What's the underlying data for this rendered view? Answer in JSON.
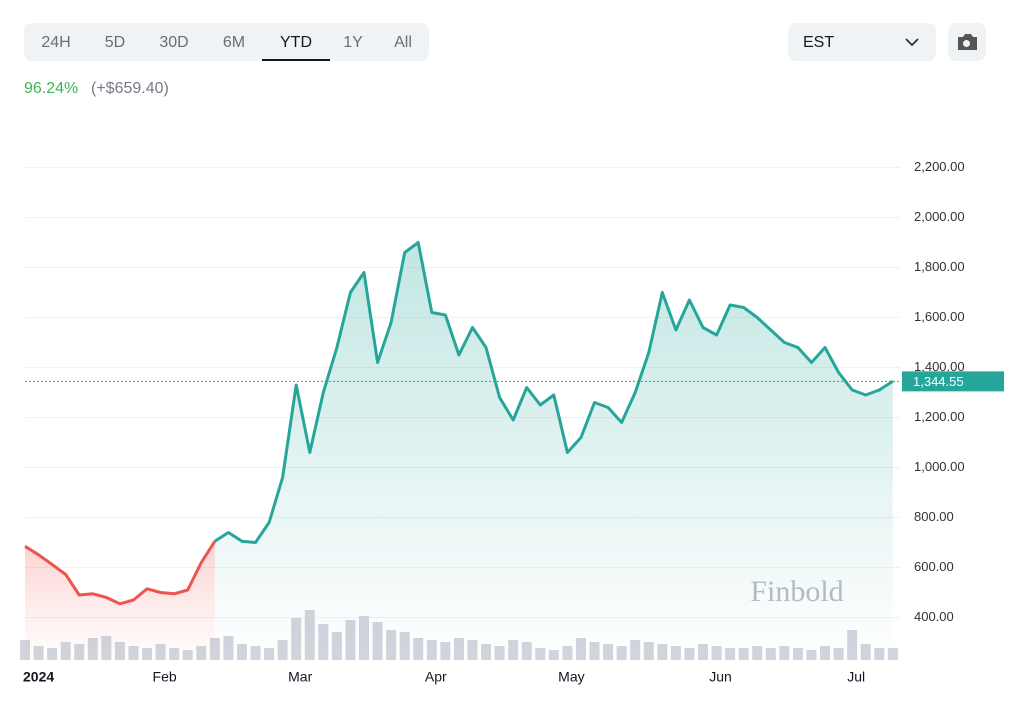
{
  "toolbar": {
    "ranges": [
      "24H",
      "5D",
      "30D",
      "6M",
      "YTD",
      "1Y",
      "All"
    ],
    "selected": "YTD",
    "timezone": "EST"
  },
  "summary": {
    "change_percent": "96.24%",
    "change_amount": "(+$659.40)"
  },
  "chart_data": {
    "type": "line",
    "categories": [
      "2024",
      null,
      null,
      null,
      null,
      null,
      null,
      null,
      null,
      null,
      "Feb",
      null,
      null,
      null,
      null,
      null,
      null,
      null,
      null,
      null,
      "Mar",
      null,
      null,
      null,
      null,
      null,
      null,
      null,
      null,
      null,
      "Apr",
      null,
      null,
      null,
      null,
      null,
      null,
      null,
      null,
      null,
      "May",
      null,
      null,
      null,
      null,
      null,
      null,
      null,
      null,
      null,
      null,
      "Jun",
      null,
      null,
      null,
      null,
      null,
      null,
      null,
      null,
      null,
      "Jul",
      null,
      null,
      null
    ],
    "values": [
      685,
      651,
      612,
      572,
      490,
      495,
      480,
      455,
      470,
      515,
      500,
      495,
      510,
      620,
      705,
      740,
      705,
      700,
      780,
      960,
      1330,
      1060,
      1300,
      1480,
      1700,
      1780,
      1420,
      1580,
      1860,
      1900,
      1620,
      1610,
      1450,
      1560,
      1480,
      1280,
      1190,
      1320,
      1250,
      1290,
      1060,
      1120,
      1260,
      1240,
      1180,
      1300,
      1460,
      1700,
      1550,
      1670,
      1560,
      1530,
      1650,
      1640,
      1600,
      1550,
      1500,
      1480,
      1420,
      1480,
      1380,
      1310,
      1290,
      1310,
      1345
    ],
    "volume": [
      20,
      14,
      12,
      18,
      16,
      22,
      24,
      18,
      14,
      12,
      16,
      12,
      10,
      14,
      22,
      24,
      16,
      14,
      12,
      20,
      42,
      50,
      36,
      28,
      40,
      44,
      38,
      30,
      28,
      22,
      20,
      18,
      22,
      20,
      16,
      14,
      20,
      18,
      12,
      10,
      14,
      22,
      18,
      16,
      14,
      20,
      18,
      16,
      14,
      12,
      16,
      14,
      12,
      12,
      14,
      12,
      14,
      12,
      10,
      14,
      12,
      30,
      16,
      12,
      12
    ],
    "colors": {
      "down": "#ef5350",
      "up": "#26a69a"
    },
    "last_price": {
      "value": 1344.55,
      "label": "1,344.55"
    },
    "watermark": "Finbold",
    "ylim": [
      230,
      2350
    ],
    "yticks": [
      {
        "value": 400,
        "label": "400.00"
      },
      {
        "value": 600,
        "label": "600.00"
      },
      {
        "value": 800,
        "label": "800.00"
      },
      {
        "value": 1000,
        "label": "1,000.00"
      },
      {
        "value": 1200,
        "label": "1,200.00"
      },
      {
        "value": 1400,
        "label": "1,400.00"
      },
      {
        "value": 1600,
        "label": "1,600.00"
      },
      {
        "value": 1800,
        "label": "1,800.00"
      },
      {
        "value": 2000,
        "label": "2,000.00"
      },
      {
        "value": 2200,
        "label": "2,200.00"
      }
    ],
    "grid": true
  }
}
